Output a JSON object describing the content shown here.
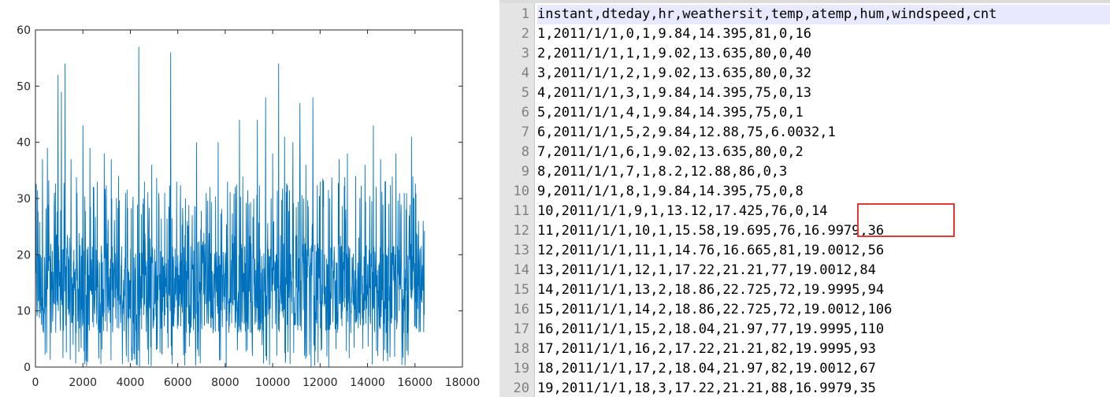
{
  "chart_data": {
    "type": "line",
    "title": "",
    "xlabel": "",
    "ylabel": "",
    "xlim": [
      0,
      18000
    ],
    "ylim": [
      0,
      60
    ],
    "xticks": [
      0,
      2000,
      4000,
      6000,
      8000,
      10000,
      12000,
      14000,
      16000,
      18000
    ],
    "yticks": [
      0,
      10,
      20,
      30,
      40,
      50,
      60
    ],
    "series": [
      {
        "color": "#0072bd",
        "x_range": [
          1,
          16400
        ],
        "typical_band": [
          6,
          22
        ],
        "peaks": [
          {
            "x": 300,
            "y": 37
          },
          {
            "x": 500,
            "y": 39
          },
          {
            "x": 800,
            "y": 31
          },
          {
            "x": 950,
            "y": 52
          },
          {
            "x": 1100,
            "y": 49
          },
          {
            "x": 1250,
            "y": 54
          },
          {
            "x": 1500,
            "y": 37
          },
          {
            "x": 1750,
            "y": 31
          },
          {
            "x": 2000,
            "y": 43
          },
          {
            "x": 2300,
            "y": 39
          },
          {
            "x": 2600,
            "y": 33
          },
          {
            "x": 2900,
            "y": 38
          },
          {
            "x": 3200,
            "y": 37
          },
          {
            "x": 3500,
            "y": 34
          },
          {
            "x": 3800,
            "y": 31
          },
          {
            "x": 4100,
            "y": 28
          },
          {
            "x": 4350,
            "y": 57
          },
          {
            "x": 4600,
            "y": 33
          },
          {
            "x": 4900,
            "y": 36
          },
          {
            "x": 5200,
            "y": 31
          },
          {
            "x": 5450,
            "y": 31
          },
          {
            "x": 5700,
            "y": 56
          },
          {
            "x": 5950,
            "y": 33
          },
          {
            "x": 6400,
            "y": 26
          },
          {
            "x": 6800,
            "y": 40
          },
          {
            "x": 7200,
            "y": 31
          },
          {
            "x": 7700,
            "y": 40
          },
          {
            "x": 8100,
            "y": 33
          },
          {
            "x": 8600,
            "y": 44
          },
          {
            "x": 9000,
            "y": 29
          },
          {
            "x": 9350,
            "y": 44
          },
          {
            "x": 9700,
            "y": 48
          },
          {
            "x": 10000,
            "y": 38
          },
          {
            "x": 10250,
            "y": 54
          },
          {
            "x": 10500,
            "y": 41
          },
          {
            "x": 10850,
            "y": 40
          },
          {
            "x": 11150,
            "y": 47
          },
          {
            "x": 11400,
            "y": 36
          },
          {
            "x": 11700,
            "y": 48
          },
          {
            "x": 12000,
            "y": 33
          },
          {
            "x": 12400,
            "y": 30
          },
          {
            "x": 12800,
            "y": 37
          },
          {
            "x": 13150,
            "y": 38
          },
          {
            "x": 13500,
            "y": 34
          },
          {
            "x": 13900,
            "y": 36
          },
          {
            "x": 14250,
            "y": 43
          },
          {
            "x": 14550,
            "y": 37
          },
          {
            "x": 14900,
            "y": 29
          },
          {
            "x": 15200,
            "y": 38
          },
          {
            "x": 15550,
            "y": 31
          },
          {
            "x": 15850,
            "y": 41
          },
          {
            "x": 16150,
            "y": 26
          },
          {
            "x": 16350,
            "y": 26
          }
        ]
      }
    ]
  },
  "editor": {
    "lines": [
      {
        "num": "1",
        "text": "instant,dteday,hr,weathersit,temp,atemp,hum,windspeed,cnt"
      },
      {
        "num": "2",
        "text": "1,2011/1/1,0,1,9.84,14.395,81,0,16"
      },
      {
        "num": "3",
        "text": "2,2011/1/1,1,1,9.02,13.635,80,0,40"
      },
      {
        "num": "4",
        "text": "3,2011/1/1,2,1,9.02,13.635,80,0,32"
      },
      {
        "num": "5",
        "text": "4,2011/1/1,3,1,9.84,14.395,75,0,13"
      },
      {
        "num": "6",
        "text": "5,2011/1/1,4,1,9.84,14.395,75,0,1"
      },
      {
        "num": "7",
        "text": "6,2011/1/1,5,2,9.84,12.88,75,6.0032,1"
      },
      {
        "num": "8",
        "text": "7,2011/1/1,6,1,9.02,13.635,80,0,2"
      },
      {
        "num": "9",
        "text": "8,2011/1/1,7,1,8.2,12.88,86,0,3"
      },
      {
        "num": "10",
        "text": "9,2011/1/1,8,1,9.84,14.395,75,0,8"
      },
      {
        "num": "11",
        "text": "10,2011/1/1,9,1,13.12,17.425,76,0,14"
      },
      {
        "num": "12",
        "text": "11,2011/1/1,10,1,15.58,19.695,76,16.9979,36"
      },
      {
        "num": "13",
        "text": "12,2011/1/1,11,1,14.76,16.665,81,19.0012,56"
      },
      {
        "num": "14",
        "text": "13,2011/1/1,12,1,17.22,21.21,77,19.0012,84"
      },
      {
        "num": "15",
        "text": "14,2011/1/1,13,2,18.86,22.725,72,19.9995,94"
      },
      {
        "num": "16",
        "text": "15,2011/1/1,14,2,18.86,22.725,72,19.0012,106"
      },
      {
        "num": "17",
        "text": "16,2011/1/1,15,2,18.04,21.97,77,19.9995,110"
      },
      {
        "num": "18",
        "text": "17,2011/1/1,16,2,17.22,21.21,82,19.9995,93"
      },
      {
        "num": "19",
        "text": "18,2011/1/1,17,2,18.04,21.97,82,19.0012,67"
      },
      {
        "num": "20",
        "text": "19,2011/1/1,18,3,17.22,21.21,88,16.9979,35"
      }
    ],
    "highlight_color": "#e53935"
  }
}
